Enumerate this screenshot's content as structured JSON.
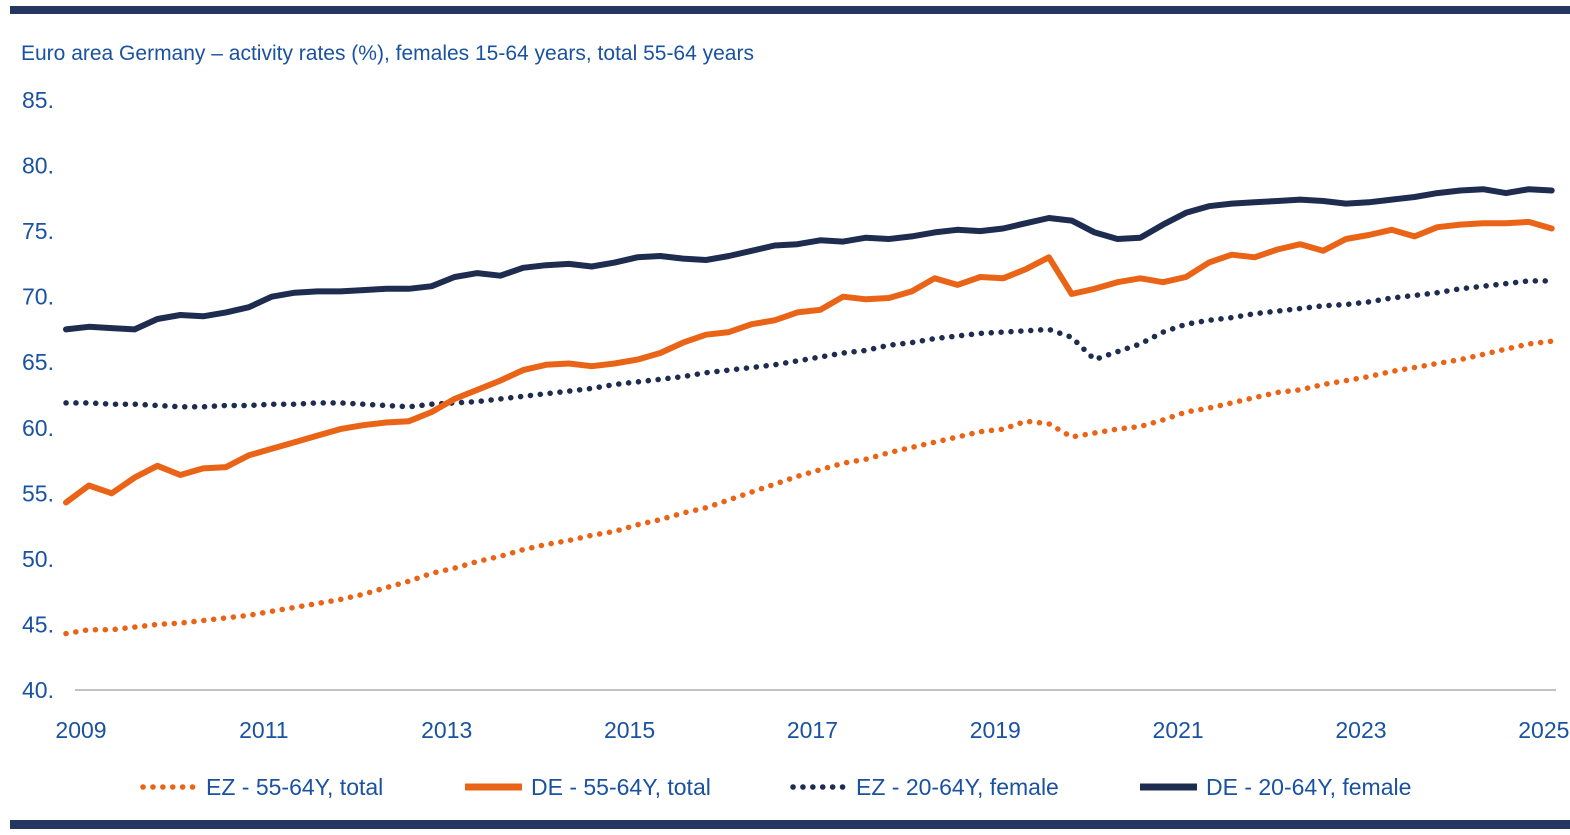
{
  "page": {
    "background": "#ffffff",
    "top_bar_color": "#243760",
    "bottom_bar_color": "#243760"
  },
  "chart_data": {
    "type": "line",
    "title": "Euro area Germany – activity rates (%), females 15-64 years, total 55-64 years",
    "title_color": "#1a52a0",
    "axis_text_color": "#1a52a0",
    "axis_line_color": "#c2c2c2",
    "frequency": "quarterly",
    "x_start_year": 2009,
    "x_end": "2025Q2",
    "points_per_series": 66,
    "grid": "off",
    "legend_position": "bottom",
    "ylim": [
      40,
      85
    ],
    "y_ticks": [
      85,
      80,
      75,
      70,
      65,
      60,
      55,
      50,
      45,
      40
    ],
    "y_tick_labels": [
      "85.",
      "80.",
      "75.",
      "70.",
      "65.",
      "60.",
      "55.",
      "50.",
      "45.",
      "40."
    ],
    "x_tick_labels": [
      "2009",
      "2011",
      "2013",
      "2015",
      "2017",
      "2019",
      "2021",
      "2023",
      "2025"
    ],
    "series": [
      {
        "name": "EZ - 55-64Y, total",
        "color": "#ea6418",
        "style": "dotted",
        "values": [
          44.3,
          44.6,
          44.6,
          44.8,
          45.0,
          45.1,
          45.3,
          45.5,
          45.7,
          46.0,
          46.3,
          46.6,
          46.9,
          47.3,
          47.8,
          48.3,
          48.9,
          49.3,
          49.8,
          50.2,
          50.7,
          51.1,
          51.4,
          51.8,
          52.1,
          52.6,
          53.0,
          53.5,
          53.9,
          54.5,
          55.1,
          55.7,
          56.3,
          56.8,
          57.3,
          57.6,
          58.1,
          58.5,
          58.9,
          59.3,
          59.7,
          59.9,
          60.5,
          60.3,
          59.3,
          59.6,
          59.9,
          60.1,
          60.6,
          61.2,
          61.5,
          61.9,
          62.3,
          62.7,
          62.9,
          63.3,
          63.6,
          63.9,
          64.3,
          64.6,
          64.9,
          65.2,
          65.6,
          66.0,
          66.4,
          66.6
        ]
      },
      {
        "name": "DE - 55-64Y, total",
        "color": "#ea6418",
        "style": "solid",
        "values": [
          54.3,
          55.6,
          55.0,
          56.2,
          57.1,
          56.4,
          56.9,
          57.0,
          57.9,
          58.4,
          58.9,
          59.4,
          59.9,
          60.2,
          60.4,
          60.5,
          61.2,
          62.2,
          62.9,
          63.6,
          64.4,
          64.8,
          64.9,
          64.7,
          64.9,
          65.2,
          65.7,
          66.5,
          67.1,
          67.3,
          67.9,
          68.2,
          68.8,
          69.0,
          70.0,
          69.8,
          69.9,
          70.4,
          71.4,
          70.9,
          71.5,
          71.4,
          72.1,
          73.0,
          70.2,
          70.6,
          71.1,
          71.4,
          71.1,
          71.5,
          72.6,
          73.2,
          73.0,
          73.6,
          74.0,
          73.5,
          74.4,
          74.7,
          75.1,
          74.6,
          75.3,
          75.5,
          75.6,
          75.6,
          75.7,
          75.2
        ]
      },
      {
        "name": "EZ - 20-64Y, female",
        "color": "#1e2c4f",
        "style": "dotted",
        "values": [
          61.9,
          61.9,
          61.8,
          61.8,
          61.7,
          61.6,
          61.6,
          61.7,
          61.7,
          61.8,
          61.8,
          61.9,
          61.9,
          61.8,
          61.7,
          61.6,
          61.8,
          61.9,
          62.0,
          62.2,
          62.4,
          62.6,
          62.8,
          63.0,
          63.3,
          63.5,
          63.7,
          63.9,
          64.2,
          64.4,
          64.6,
          64.8,
          65.1,
          65.4,
          65.7,
          65.9,
          66.3,
          66.5,
          66.8,
          67.0,
          67.2,
          67.3,
          67.4,
          67.5,
          66.9,
          65.2,
          65.8,
          66.4,
          67.3,
          67.9,
          68.2,
          68.4,
          68.7,
          68.9,
          69.1,
          69.3,
          69.4,
          69.6,
          69.9,
          70.1,
          70.3,
          70.6,
          70.8,
          71.0,
          71.2,
          71.2
        ]
      },
      {
        "name": "DE - 20-64Y, female",
        "color": "#1e2c4f",
        "style": "solid",
        "values": [
          67.5,
          67.7,
          67.6,
          67.5,
          68.3,
          68.6,
          68.5,
          68.8,
          69.2,
          70.0,
          70.3,
          70.4,
          70.4,
          70.5,
          70.6,
          70.6,
          70.8,
          71.5,
          71.8,
          71.6,
          72.2,
          72.4,
          72.5,
          72.3,
          72.6,
          73.0,
          73.1,
          72.9,
          72.8,
          73.1,
          73.5,
          73.9,
          74.0,
          74.3,
          74.2,
          74.5,
          74.4,
          74.6,
          74.9,
          75.1,
          75.0,
          75.2,
          75.6,
          76.0,
          75.8,
          74.9,
          74.4,
          74.5,
          75.5,
          76.4,
          76.9,
          77.1,
          77.2,
          77.3,
          77.4,
          77.3,
          77.1,
          77.2,
          77.4,
          77.6,
          77.9,
          78.1,
          78.2,
          77.9,
          78.2,
          78.1
        ]
      }
    ]
  }
}
